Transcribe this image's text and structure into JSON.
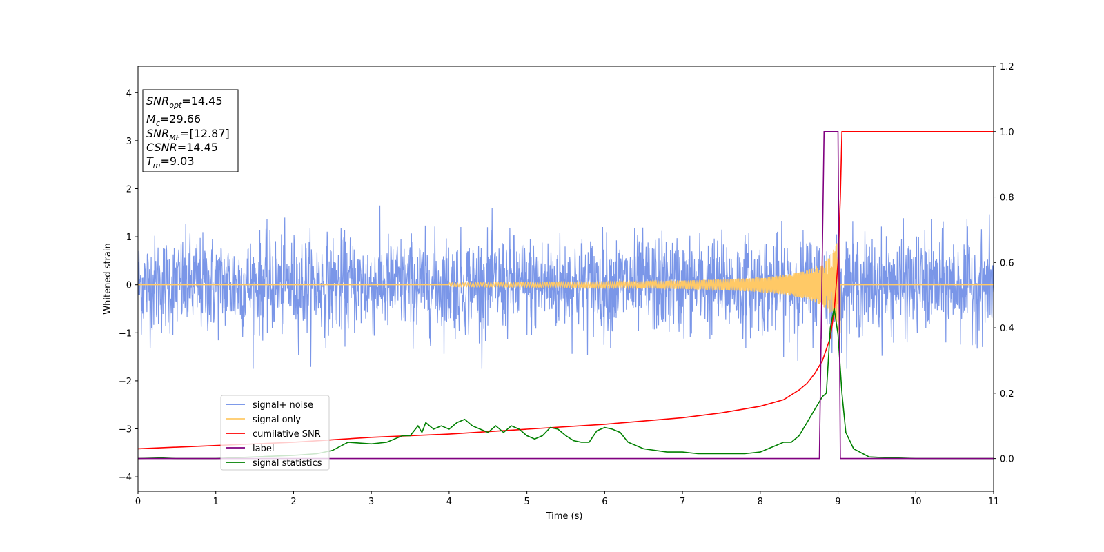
{
  "chart_data": {
    "type": "line",
    "title": "",
    "xlabel": "Time (s)",
    "ylabel": "Whitened strain",
    "y2label": "",
    "xlim": [
      0,
      11
    ],
    "ylim": [
      -4.3,
      4.55
    ],
    "y2lim": [
      -0.1,
      1.2
    ],
    "xticks": [
      0,
      1,
      2,
      3,
      4,
      5,
      6,
      7,
      8,
      9,
      10,
      11
    ],
    "yticks": [
      -4,
      -3,
      -2,
      -1,
      0,
      1,
      2,
      3,
      4
    ],
    "y2ticks": [
      0.0,
      0.2,
      0.4,
      0.6,
      0.8,
      1.0,
      1.2
    ],
    "grid": false,
    "legend_placement": "lower-left",
    "legend": [
      {
        "label": "signal+ noise",
        "color": "#6b8be6"
      },
      {
        "label": "signal only",
        "color": "#ffc966"
      },
      {
        "label": "cumilative SNR",
        "color": "#ff0000"
      },
      {
        "label": "label",
        "color": "#800080"
      },
      {
        "label": "signal statistics",
        "color": "#008000"
      }
    ],
    "annotation": [
      {
        "base": "SNR",
        "sub": "opt",
        "rest": "=14.45"
      },
      {
        "base": "M",
        "sub": "c",
        "rest": "=29.66"
      },
      {
        "base": "SNR",
        "sub": "MF",
        "rest": "=[12.87]"
      },
      {
        "base": "CSNR",
        "sub": "",
        "rest": "=14.45"
      },
      {
        "base": "T",
        "sub": "m",
        "rest": "=9.03"
      }
    ],
    "series": [
      {
        "name": "signal+ noise",
        "axis": "left",
        "color": "#6b8be6",
        "description": "whitened noise, envelope approx ±1.2 with spikes",
        "envelope": [
          [
            0,
            1.2
          ],
          [
            11,
            1.2
          ]
        ]
      },
      {
        "name": "signal only",
        "axis": "left",
        "color": "#ffc966",
        "chirp_start": 4.0,
        "merger_time": 9.03,
        "peak_amplitude": 1.2
      },
      {
        "name": "cumilative SNR",
        "axis": "right",
        "color": "#ff0000",
        "x": [
          0,
          1,
          2,
          3,
          4,
          5,
          6,
          7,
          7.5,
          8,
          8.3,
          8.5,
          8.6,
          8.7,
          8.8,
          8.9,
          8.95,
          9.0,
          9.03,
          9.05,
          11
        ],
        "y": [
          0.03,
          0.04,
          0.05,
          0.065,
          0.075,
          0.09,
          0.105,
          0.125,
          0.14,
          0.16,
          0.18,
          0.21,
          0.23,
          0.26,
          0.3,
          0.37,
          0.45,
          0.6,
          0.8,
          1.0,
          1.0
        ]
      },
      {
        "name": "label",
        "axis": "right",
        "color": "#800080",
        "x": [
          0,
          8.76,
          8.82,
          9.0,
          9.03,
          11
        ],
        "y": [
          0,
          0,
          1,
          1,
          0,
          0
        ]
      },
      {
        "name": "signal statistics",
        "axis": "right",
        "color": "#008000",
        "x": [
          0,
          0.3,
          0.5,
          1.0,
          1.5,
          2.0,
          2.3,
          2.5,
          2.7,
          3.0,
          3.2,
          3.4,
          3.5,
          3.6,
          3.65,
          3.7,
          3.75,
          3.8,
          3.9,
          4.0,
          4.1,
          4.2,
          4.3,
          4.4,
          4.5,
          4.6,
          4.7,
          4.8,
          4.9,
          5.0,
          5.1,
          5.2,
          5.3,
          5.4,
          5.5,
          5.6,
          5.7,
          5.8,
          5.9,
          6.0,
          6.1,
          6.2,
          6.3,
          6.5,
          6.8,
          7.0,
          7.2,
          7.5,
          7.8,
          8.0,
          8.1,
          8.2,
          8.3,
          8.4,
          8.5,
          8.6,
          8.7,
          8.8,
          8.85,
          8.9,
          8.95,
          9.0,
          9.05,
          9.1,
          9.2,
          9.4,
          9.6,
          10,
          11
        ],
        "y": [
          0,
          0.002,
          0,
          0,
          0.005,
          0.01,
          0.015,
          0.025,
          0.05,
          0.045,
          0.05,
          0.07,
          0.07,
          0.1,
          0.08,
          0.11,
          0.1,
          0.09,
          0.1,
          0.09,
          0.11,
          0.12,
          0.1,
          0.09,
          0.08,
          0.1,
          0.08,
          0.1,
          0.09,
          0.07,
          0.06,
          0.07,
          0.095,
          0.09,
          0.07,
          0.055,
          0.05,
          0.05,
          0.085,
          0.095,
          0.09,
          0.08,
          0.05,
          0.03,
          0.02,
          0.02,
          0.015,
          0.015,
          0.015,
          0.02,
          0.03,
          0.04,
          0.05,
          0.05,
          0.07,
          0.11,
          0.15,
          0.19,
          0.2,
          0.4,
          0.46,
          0.38,
          0.2,
          0.08,
          0.03,
          0.005,
          0.003,
          0,
          0
        ]
      }
    ]
  }
}
